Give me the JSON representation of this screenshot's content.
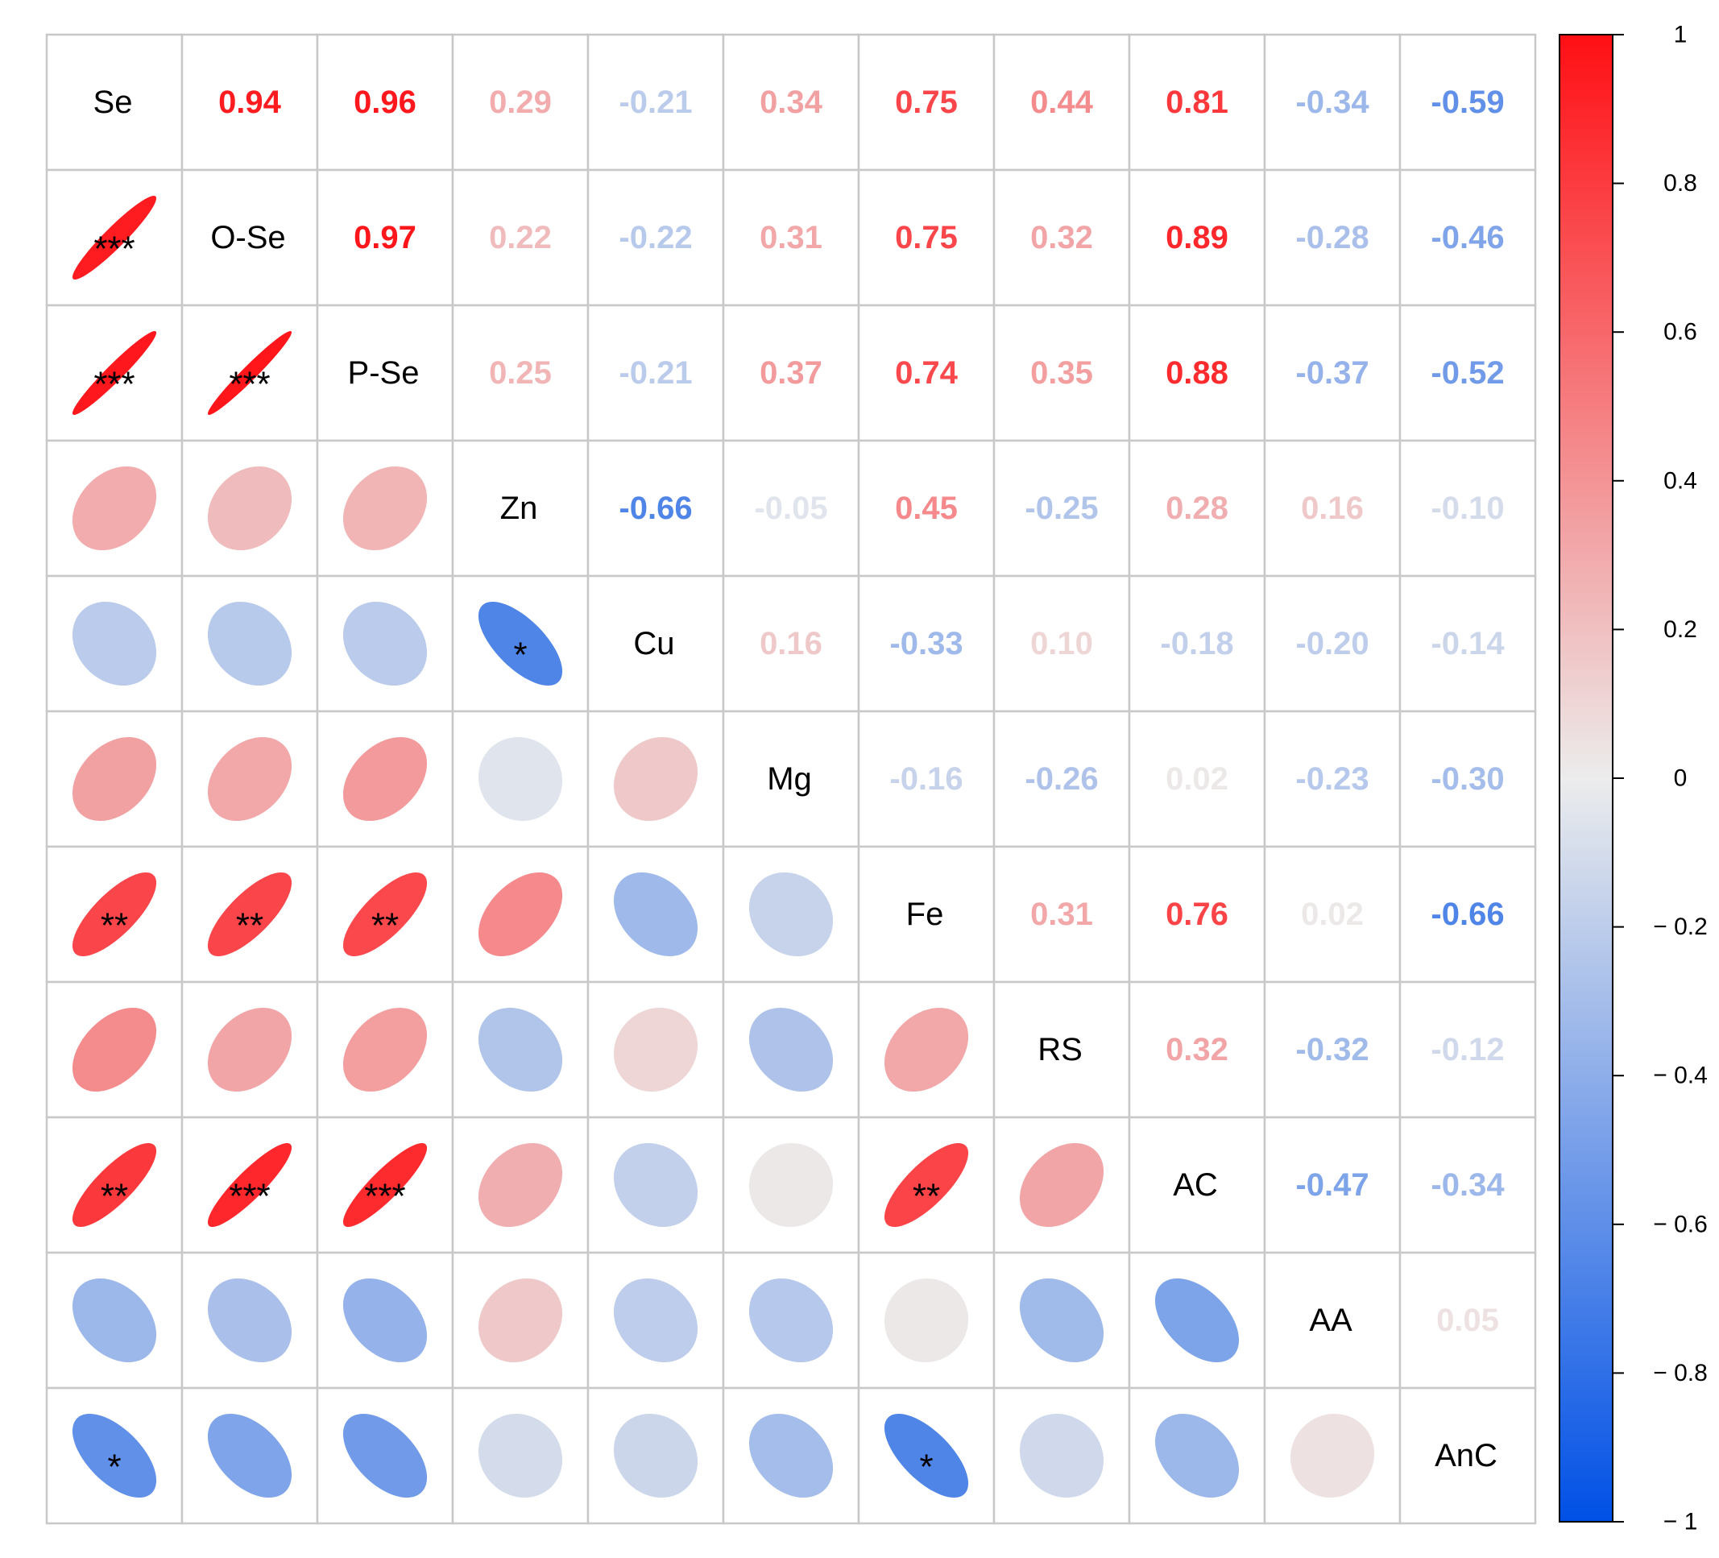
{
  "chart_data": {
    "type": "heatmap",
    "style": "correlation-matrix",
    "upper_triangle": "number",
    "lower_triangle": "ellipse",
    "variables": [
      "Se",
      "O-Se",
      "P-Se",
      "Zn",
      "Cu",
      "Mg",
      "Fe",
      "RS",
      "AC",
      "AA",
      "AnC"
    ],
    "matrix": [
      [
        1,
        0.94,
        0.96,
        0.29,
        -0.21,
        0.34,
        0.75,
        0.44,
        0.81,
        -0.34,
        -0.59
      ],
      [
        0.94,
        1,
        0.97,
        0.22,
        -0.22,
        0.31,
        0.75,
        0.32,
        0.89,
        -0.28,
        -0.46
      ],
      [
        0.96,
        0.97,
        1,
        0.25,
        -0.21,
        0.37,
        0.74,
        0.35,
        0.88,
        -0.37,
        -0.52
      ],
      [
        0.29,
        0.22,
        0.25,
        1,
        -0.66,
        -0.05,
        0.45,
        -0.25,
        0.28,
        0.16,
        -0.1
      ],
      [
        -0.21,
        -0.22,
        -0.21,
        -0.66,
        1,
        0.16,
        -0.33,
        0.1,
        -0.18,
        -0.2,
        -0.14
      ],
      [
        0.34,
        0.31,
        0.37,
        -0.05,
        0.16,
        1,
        -0.16,
        -0.26,
        0.02,
        -0.23,
        -0.3
      ],
      [
        0.75,
        0.75,
        0.74,
        0.45,
        -0.33,
        -0.16,
        1,
        0.31,
        0.76,
        0.02,
        -0.66
      ],
      [
        0.44,
        0.32,
        0.35,
        -0.25,
        0.1,
        -0.26,
        0.31,
        1,
        0.32,
        -0.32,
        -0.12
      ],
      [
        0.81,
        0.89,
        0.88,
        0.28,
        -0.18,
        0.02,
        0.76,
        0.32,
        1,
        -0.47,
        -0.34
      ],
      [
        -0.34,
        -0.28,
        -0.37,
        0.16,
        -0.2,
        -0.23,
        0.02,
        -0.32,
        -0.47,
        1,
        0.05
      ],
      [
        -0.59,
        -0.46,
        -0.52,
        -0.1,
        -0.14,
        -0.3,
        -0.66,
        -0.12,
        -0.34,
        0.05,
        1
      ]
    ],
    "significance": [
      {
        "row": 1,
        "col": 0,
        "mark": "***"
      },
      {
        "row": 2,
        "col": 0,
        "mark": "***"
      },
      {
        "row": 2,
        "col": 1,
        "mark": "***"
      },
      {
        "row": 4,
        "col": 3,
        "mark": "*"
      },
      {
        "row": 6,
        "col": 0,
        "mark": "**"
      },
      {
        "row": 6,
        "col": 1,
        "mark": "**"
      },
      {
        "row": 6,
        "col": 2,
        "mark": "**"
      },
      {
        "row": 8,
        "col": 0,
        "mark": "**"
      },
      {
        "row": 8,
        "col": 1,
        "mark": "***"
      },
      {
        "row": 8,
        "col": 2,
        "mark": "***"
      },
      {
        "row": 8,
        "col": 6,
        "mark": "**"
      },
      {
        "row": 10,
        "col": 0,
        "mark": "*"
      },
      {
        "row": 10,
        "col": 6,
        "mark": "*"
      }
    ],
    "colorbar": {
      "range": [
        -1,
        1
      ],
      "ticks": [
        1,
        0.8,
        0.6,
        0.4,
        0.2,
        0,
        -0.2,
        -0.4,
        -0.6,
        -0.8,
        -1
      ],
      "tick_labels": [
        "1",
        "0.8",
        "0.6",
        "0.4",
        "0.2",
        "0",
        "− 0.2",
        "− 0.4",
        "− 0.6",
        "− 0.8",
        "− 1"
      ],
      "placement": "right"
    },
    "colors": {
      "negative": "#0050e6",
      "zero": "#ececec",
      "positive": "#ff0f14",
      "grid": "#c8c8c8"
    }
  }
}
